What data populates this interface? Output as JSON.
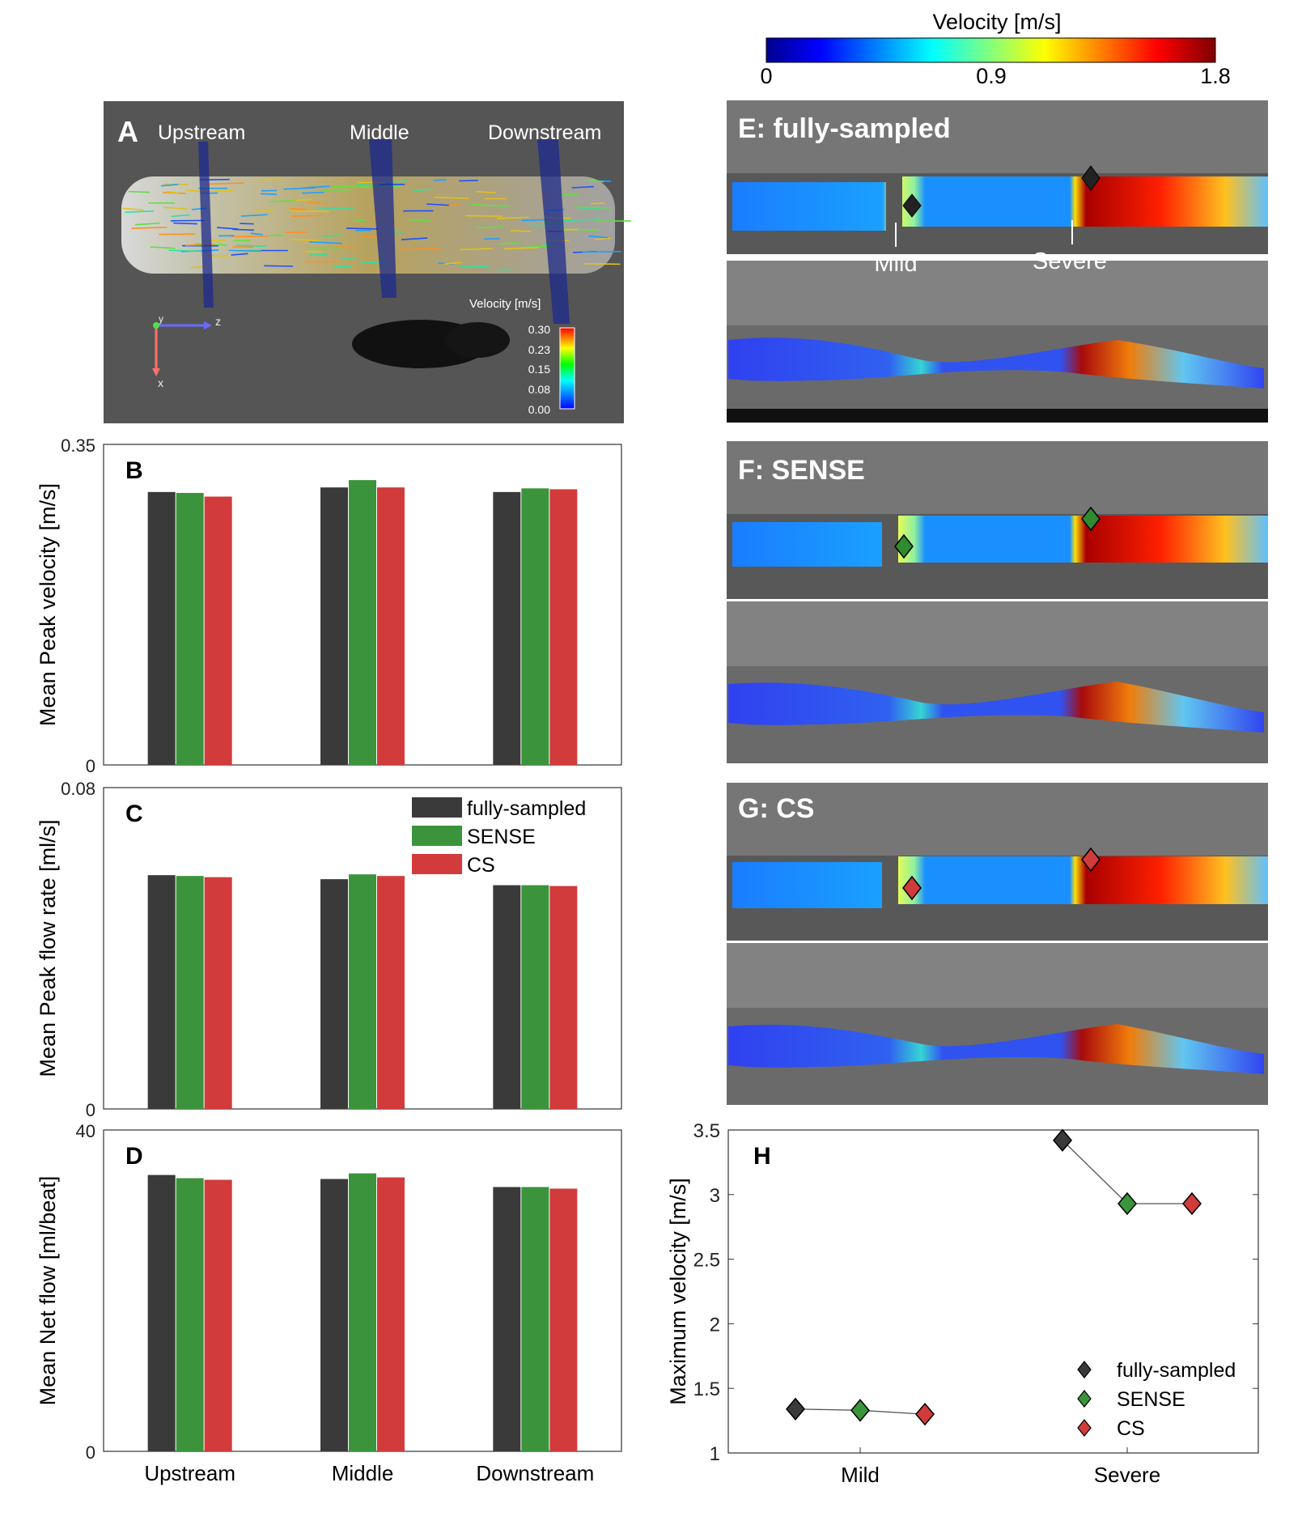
{
  "colorbar": {
    "title": "Velocity [m/s]",
    "ticks": [
      "0",
      "0.9",
      "1.8"
    ],
    "colors": [
      "#00008f",
      "#0000ff",
      "#00ffff",
      "#ffff00",
      "#ff0000",
      "#800000"
    ]
  },
  "panel_a": {
    "letter": "A",
    "labels": [
      "Upstream",
      "Middle",
      "Downstream"
    ],
    "inset_title": "Velocity [m/s]",
    "inset_ticks": [
      "0.30",
      "0.23",
      "0.15",
      "0.08",
      "0.00"
    ],
    "axes": {
      "y": "y",
      "z": "z",
      "x": "x"
    }
  },
  "panel_e": {
    "title": "E: fully-sampled",
    "markers": [
      "Mild",
      "Severe"
    ],
    "marker_color": "#222222"
  },
  "panel_f": {
    "title": "F: SENSE",
    "marker_color": "#2e8b2e"
  },
  "panel_g": {
    "title": "G: CS",
    "marker_color": "#d13b3b"
  },
  "methods": [
    {
      "name": "fully-sampled",
      "color": "#3a3a3a"
    },
    {
      "name": "SENSE",
      "color": "#3b943b"
    },
    {
      "name": "CS",
      "color": "#d13b3b"
    }
  ],
  "chart_data": [
    {
      "id": "B",
      "type": "bar",
      "ylabel": "Mean Peak velocity [m/s]",
      "ylim": [
        0,
        0.35
      ],
      "yticks": [
        "0",
        "0.35"
      ],
      "categories": [
        "Upstream",
        "Middle",
        "Downstream"
      ],
      "series": [
        {
          "name": "fully-sampled",
          "values": [
            0.298,
            0.303,
            0.298
          ]
        },
        {
          "name": "SENSE",
          "values": [
            0.297,
            0.311,
            0.302
          ]
        },
        {
          "name": "CS",
          "values": [
            0.293,
            0.303,
            0.301
          ]
        }
      ]
    },
    {
      "id": "C",
      "type": "bar",
      "ylabel": "Mean Peak flow rate [ml/s]",
      "ylim": [
        0,
        0.08
      ],
      "yticks": [
        "0",
        "0.08"
      ],
      "categories": [
        "Upstream",
        "Middle",
        "Downstream"
      ],
      "legend": "top-right",
      "series": [
        {
          "name": "fully-sampled",
          "values": [
            0.0582,
            0.0572,
            0.0557
          ]
        },
        {
          "name": "SENSE",
          "values": [
            0.058,
            0.0584,
            0.0557
          ]
        },
        {
          "name": "CS",
          "values": [
            0.0577,
            0.058,
            0.0555
          ]
        }
      ]
    },
    {
      "id": "D",
      "type": "bar",
      "ylabel": "Mean Net flow [ml/beat]",
      "ylim": [
        0,
        40
      ],
      "yticks": [
        "0",
        "40"
      ],
      "categories": [
        "Upstream",
        "Middle",
        "Downstream"
      ],
      "series": [
        {
          "name": "fully-sampled",
          "values": [
            34.4,
            33.9,
            32.9
          ]
        },
        {
          "name": "SENSE",
          "values": [
            34.0,
            34.6,
            32.9
          ]
        },
        {
          "name": "CS",
          "values": [
            33.8,
            34.1,
            32.7
          ]
        }
      ]
    },
    {
      "id": "H",
      "type": "scatter",
      "ylabel": "Maximum velocity [m/s]",
      "ylim": [
        1,
        3.5
      ],
      "yticks": [
        "1",
        "1.5",
        "2",
        "2.5",
        "3",
        "3.5"
      ],
      "categories": [
        "Mild",
        "Severe"
      ],
      "legend": "bottom-right",
      "series": [
        {
          "name": "fully-sampled",
          "values": [
            1.34,
            3.42
          ]
        },
        {
          "name": "SENSE",
          "values": [
            1.33,
            2.93
          ]
        },
        {
          "name": "CS",
          "values": [
            1.3,
            2.93
          ]
        }
      ]
    }
  ]
}
